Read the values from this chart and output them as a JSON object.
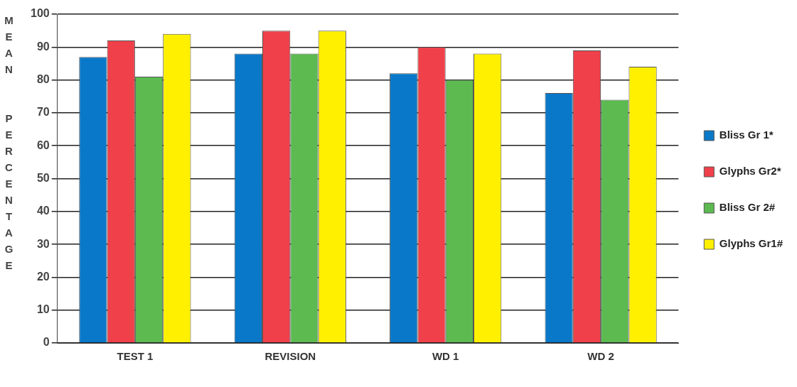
{
  "chart_data": {
    "type": "bar",
    "ylabel": "MEAN PERCENTAGE",
    "categories": [
      "TEST 1",
      "REVISION",
      "WD 1",
      "WD 2"
    ],
    "series": [
      {
        "name": "Bliss Gr 1*",
        "color": "#0a78c8",
        "values": [
          87,
          88,
          82,
          76
        ]
      },
      {
        "name": "Glyphs Gr2*",
        "color": "#f0404a",
        "values": [
          92,
          95,
          90,
          89
        ]
      },
      {
        "name": "Bliss Gr 2#",
        "color": "#5cba50",
        "values": [
          81,
          88,
          80,
          74
        ]
      },
      {
        "name": "Glyphs Gr1#",
        "color": "#fff000",
        "values": [
          94,
          95,
          88,
          84
        ]
      }
    ],
    "ylim": [
      0,
      100
    ],
    "yticks": [
      0,
      10,
      20,
      30,
      40,
      50,
      60,
      70,
      80,
      90,
      100
    ],
    "grid": "y",
    "legend": "right"
  }
}
